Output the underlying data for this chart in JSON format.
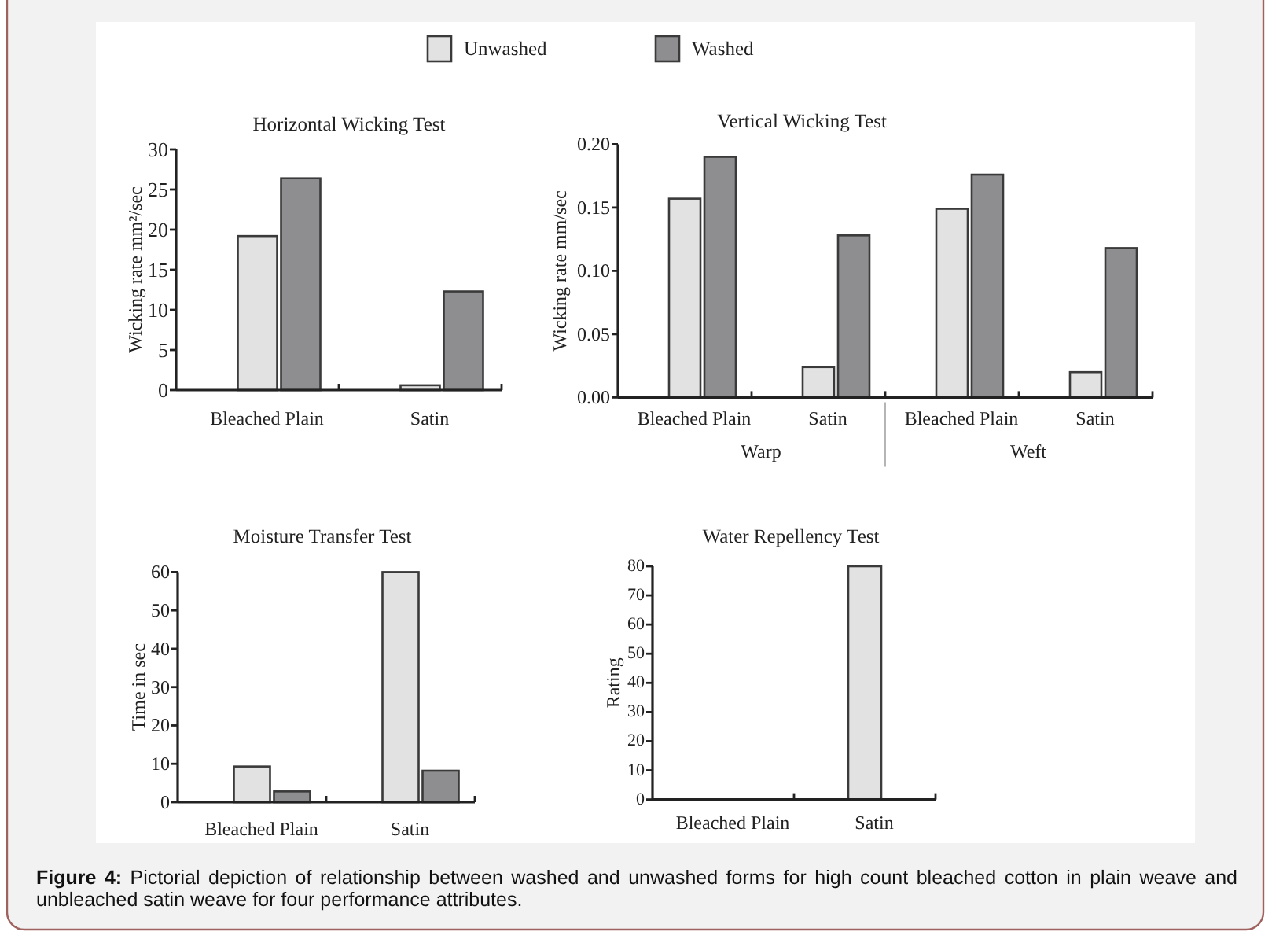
{
  "chart_data": [
    {
      "type": "bar",
      "title": "Horizontal Wicking Test",
      "ylabel": "Wicking rate mm²/sec",
      "categories": [
        "Bleached Plain",
        "Satin"
      ],
      "series": [
        {
          "name": "Unwashed",
          "color": "#e2e2e2",
          "values": [
            19.2,
            0.6
          ]
        },
        {
          "name": "Washed",
          "color": "#8e8e90",
          "values": [
            26.4,
            12.3
          ]
        }
      ],
      "ylim": [
        0,
        30
      ],
      "yticks": [
        0,
        5,
        10,
        15,
        20,
        25,
        30
      ],
      "legend": "top"
    },
    {
      "type": "bar",
      "title": "Vertical Wicking Test",
      "ylabel": "Wicking rate mm/sec",
      "categories": [
        "Bleached Plain",
        "Satin",
        "Bleached Plain",
        "Satin"
      ],
      "annotations": [
        "Warp",
        "Weft"
      ],
      "series": [
        {
          "color": "#e2e2e2",
          "values": [
            0.157,
            0.024,
            0.149,
            0.02
          ]
        },
        {
          "color": "#8e8e90",
          "values": [
            0.19,
            0.128,
            0.176,
            0.118
          ]
        }
      ],
      "ylim": [
        0,
        0.2
      ],
      "yticks": [
        {
          "value": 0,
          "label": "0.00"
        },
        {
          "value": 0.05,
          "label": "0.05"
        },
        {
          "value": 0.1,
          "label": "0.10"
        },
        {
          "value": 0.15,
          "label": "0.15"
        },
        {
          "value": 0.2,
          "label": "0.20"
        }
      ]
    },
    {
      "type": "bar",
      "title": "Moisture Transfer Test",
      "ylabel": "Time in sec",
      "categories": [
        "Bleached Plain",
        "Satin"
      ],
      "series": [
        {
          "color": "#e2e2e2",
          "values": [
            9.3,
            60
          ]
        },
        {
          "color": "#8e8e90",
          "values": [
            2.8,
            8.2
          ]
        }
      ],
      "ylim": [
        0,
        60
      ],
      "yticks": [
        0,
        10,
        20,
        30,
        40,
        50,
        60
      ]
    },
    {
      "type": "bar",
      "title": "Water Repellency Test",
      "ylabel": "Rating",
      "categories": [
        "Bleached Plain",
        "Satin"
      ],
      "series": [
        {
          "color": "#e2e2e2",
          "values": [
            null,
            80
          ]
        }
      ],
      "ylim": [
        0,
        80
      ],
      "yticks": [
        0,
        10,
        20,
        30,
        40,
        50,
        60,
        70,
        80
      ]
    },
    {
      "type": "other",
      "annotations": [
        "Figure 4: Pictorial depiction of relationship between washed and unwashed forms for high count bleached cotton in plain weave and unbleached satin weave for four performance attributes."
      ]
    }
  ]
}
